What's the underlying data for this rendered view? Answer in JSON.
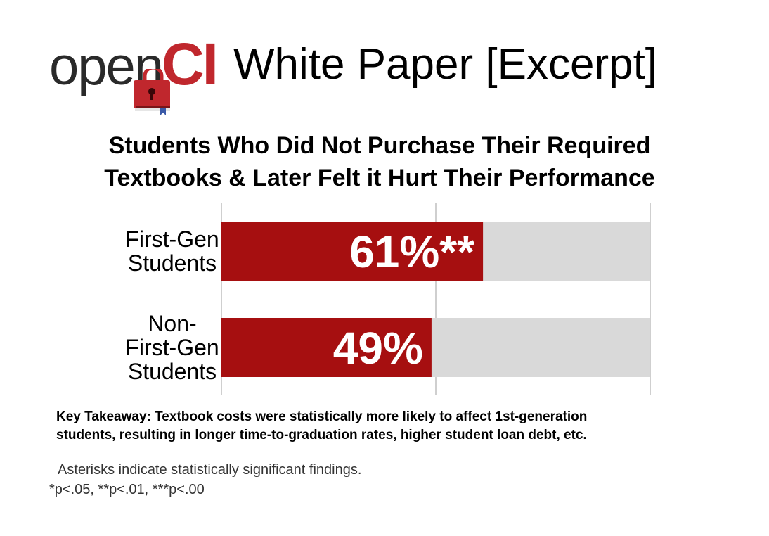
{
  "header": {
    "logo_open": "open",
    "logo_ci": "CI",
    "title": "White Paper [Excerpt]",
    "colors": {
      "logo_red": "#c0272d",
      "logo_gray": "#2a2a2a"
    }
  },
  "chart_data": {
    "type": "bar",
    "orientation": "horizontal",
    "title": "Students Who Did Not Purchase Their Required Textbooks & Later Felt it Hurt Their Performance",
    "title_lines": [
      "Students Who Did Not Purchase Their Required",
      "Textbooks & Later Felt it Hurt Their Performance"
    ],
    "categories": [
      "First-Gen Students",
      "Non-First-Gen Students"
    ],
    "category_lines": [
      [
        "First-Gen",
        "Students"
      ],
      [
        "Non-",
        "First-Gen",
        "Students"
      ]
    ],
    "values": [
      61,
      49
    ],
    "value_labels": [
      "61%**",
      "49%"
    ],
    "xlim": [
      0,
      100
    ],
    "grid": true,
    "colors": {
      "bar": "#a60f10",
      "track": "#d9d9d9",
      "grid": "#cfcfcf"
    }
  },
  "takeaway": {
    "line1": "Key Takeaway: Textbook costs were statistically more likely to affect 1st-generation",
    "line2": "students, resulting in longer time-to-graduation rates, higher student loan debt, etc."
  },
  "notes": {
    "line1": "Asterisks indicate statistically significant findings.",
    "line2": "*p<.05, **p<.01, ***p<.00"
  }
}
